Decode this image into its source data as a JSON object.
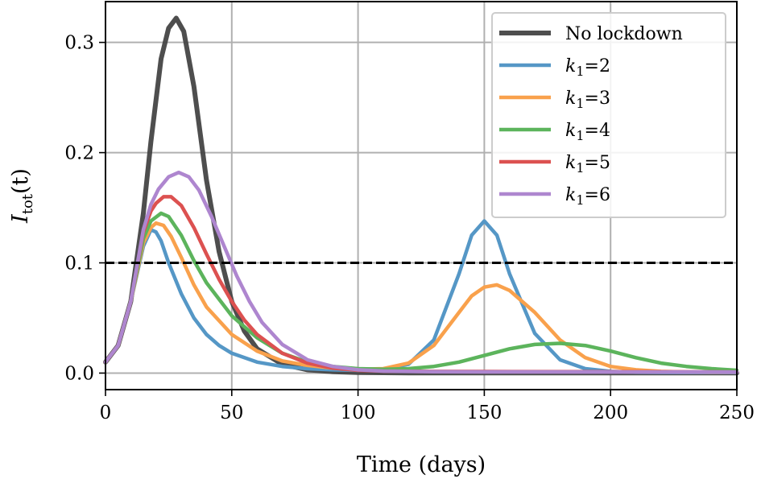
{
  "chart_data": {
    "type": "line",
    "xlabel": "Time (days)",
    "ylabel": {
      "base": "I",
      "sub": "tot",
      "arg": "(t)"
    },
    "xlim": [
      0,
      250
    ],
    "ylim": [
      -0.015,
      0.337
    ],
    "xticks": [
      0,
      50,
      100,
      150,
      200,
      250
    ],
    "xtick_labels": [
      "0",
      "50",
      "100",
      "150",
      "200",
      "250"
    ],
    "yticks": [
      0.0,
      0.1,
      0.2,
      0.3
    ],
    "ytick_labels": [
      "0.0",
      "0.1",
      "0.2",
      "0.3"
    ],
    "grid": true,
    "threshold": {
      "y": 0.1,
      "style": "dashed",
      "color": "#000000"
    },
    "legend_position": "top-right",
    "series": [
      {
        "name": "No lockdown",
        "label_plain": "No lockdown",
        "color": "#444444",
        "opacity": 0.95,
        "width": 6,
        "x": [
          0,
          5,
          10,
          15,
          18,
          22,
          25,
          28,
          31,
          35,
          40,
          45,
          50,
          55,
          60,
          70,
          80,
          90,
          100,
          120,
          150,
          200,
          250
        ],
        "y": [
          0.01,
          0.025,
          0.065,
          0.145,
          0.21,
          0.285,
          0.313,
          0.322,
          0.31,
          0.26,
          0.175,
          0.11,
          0.065,
          0.038,
          0.022,
          0.008,
          0.003,
          0.0012,
          0.0005,
          0.0002,
          0.0001,
          0.0001,
          0.0001
        ]
      },
      {
        "name": "k1=2",
        "sub": "1",
        "val": "2",
        "color": "#5597c6",
        "opacity": 1,
        "width": 4.5,
        "x": [
          0,
          5,
          10,
          15,
          18,
          20,
          22,
          25,
          30,
          35,
          40,
          45,
          50,
          60,
          70,
          80,
          90,
          100,
          110,
          120,
          130,
          140,
          145,
          150,
          155,
          160,
          170,
          180,
          190,
          200,
          210,
          220,
          230,
          240,
          250
        ],
        "y": [
          0.01,
          0.025,
          0.065,
          0.115,
          0.13,
          0.128,
          0.12,
          0.1,
          0.072,
          0.05,
          0.035,
          0.025,
          0.018,
          0.01,
          0.006,
          0.004,
          0.003,
          0.0025,
          0.0035,
          0.008,
          0.03,
          0.09,
          0.125,
          0.138,
          0.125,
          0.09,
          0.036,
          0.012,
          0.004,
          0.0015,
          0.0008,
          0.0006,
          0.0005,
          0.0005,
          0.0005
        ]
      },
      {
        "name": "k1=3",
        "sub": "1",
        "val": "3",
        "color": "#f9a14c",
        "opacity": 1,
        "width": 4.5,
        "x": [
          0,
          5,
          10,
          15,
          18,
          20,
          23,
          26,
          30,
          35,
          40,
          50,
          60,
          70,
          80,
          90,
          100,
          110,
          120,
          130,
          140,
          145,
          150,
          155,
          160,
          170,
          180,
          190,
          200,
          210,
          220,
          230,
          240,
          250
        ],
        "y": [
          0.01,
          0.025,
          0.065,
          0.118,
          0.132,
          0.136,
          0.134,
          0.124,
          0.105,
          0.08,
          0.06,
          0.035,
          0.02,
          0.011,
          0.007,
          0.0045,
          0.0035,
          0.004,
          0.009,
          0.025,
          0.055,
          0.07,
          0.078,
          0.08,
          0.075,
          0.055,
          0.03,
          0.014,
          0.006,
          0.003,
          0.0015,
          0.001,
          0.0008,
          0.0008
        ]
      },
      {
        "name": "k1=4",
        "sub": "1",
        "val": "4",
        "color": "#5cb45c",
        "opacity": 1,
        "width": 4.5,
        "x": [
          0,
          5,
          10,
          15,
          18,
          22,
          25,
          30,
          35,
          40,
          50,
          60,
          70,
          80,
          90,
          100,
          110,
          120,
          130,
          140,
          150,
          160,
          170,
          180,
          190,
          200,
          210,
          220,
          230,
          240,
          250
        ],
        "y": [
          0.01,
          0.025,
          0.065,
          0.122,
          0.138,
          0.145,
          0.142,
          0.125,
          0.102,
          0.082,
          0.052,
          0.032,
          0.018,
          0.01,
          0.006,
          0.004,
          0.0035,
          0.004,
          0.006,
          0.01,
          0.016,
          0.022,
          0.026,
          0.027,
          0.025,
          0.02,
          0.014,
          0.009,
          0.006,
          0.004,
          0.0025
        ]
      },
      {
        "name": "k1=5",
        "sub": "1",
        "val": "5",
        "color": "#dc5150",
        "opacity": 1,
        "width": 4.5,
        "x": [
          0,
          5,
          10,
          15,
          18,
          20,
          23,
          26,
          30,
          35,
          40,
          45,
          50,
          55,
          60,
          70,
          80,
          90,
          100,
          110,
          130,
          150,
          200,
          250
        ],
        "y": [
          0.01,
          0.025,
          0.065,
          0.128,
          0.147,
          0.154,
          0.16,
          0.16,
          0.152,
          0.132,
          0.108,
          0.085,
          0.065,
          0.048,
          0.035,
          0.018,
          0.009,
          0.0045,
          0.0025,
          0.0018,
          0.0015,
          0.0014,
          0.0012,
          0.001
        ]
      },
      {
        "name": "k1=6",
        "sub": "1",
        "val": "6",
        "color": "#ae86cf",
        "opacity": 1,
        "width": 4.5,
        "x": [
          0,
          5,
          10,
          15,
          18,
          21,
          25,
          29,
          33,
          37,
          42,
          47,
          52,
          57,
          62,
          70,
          80,
          90,
          100,
          110,
          130,
          150,
          200,
          250
        ],
        "y": [
          0.01,
          0.025,
          0.065,
          0.13,
          0.153,
          0.167,
          0.178,
          0.182,
          0.178,
          0.166,
          0.142,
          0.115,
          0.088,
          0.065,
          0.046,
          0.026,
          0.012,
          0.006,
          0.003,
          0.0018,
          0.0012,
          0.0011,
          0.001,
          0.0009
        ]
      }
    ]
  }
}
